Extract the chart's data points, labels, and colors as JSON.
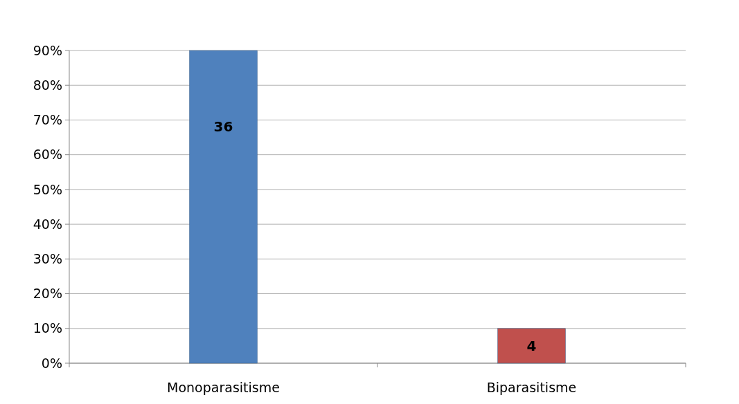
{
  "chart_data": {
    "type": "bar",
    "categories": [
      "Monoparasitisme",
      "Biparasitisme"
    ],
    "values": [
      90,
      10
    ],
    "colors": [
      "#4f81bd",
      "#c0504d"
    ],
    "annotations": [
      "36",
      "4"
    ],
    "ylim": [
      0,
      90
    ],
    "yticks": [
      {
        "value": 0,
        "label": "0%"
      },
      {
        "value": 10,
        "label": "10%"
      },
      {
        "value": 20,
        "label": "20%"
      },
      {
        "value": 30,
        "label": "30%"
      },
      {
        "value": 40,
        "label": "40%"
      },
      {
        "value": 50,
        "label": "50%"
      },
      {
        "value": 60,
        "label": "60%"
      },
      {
        "value": 70,
        "label": "70%"
      },
      {
        "value": 80,
        "label": "80%"
      },
      {
        "value": 90,
        "label": "90%"
      }
    ],
    "grid": "y"
  }
}
